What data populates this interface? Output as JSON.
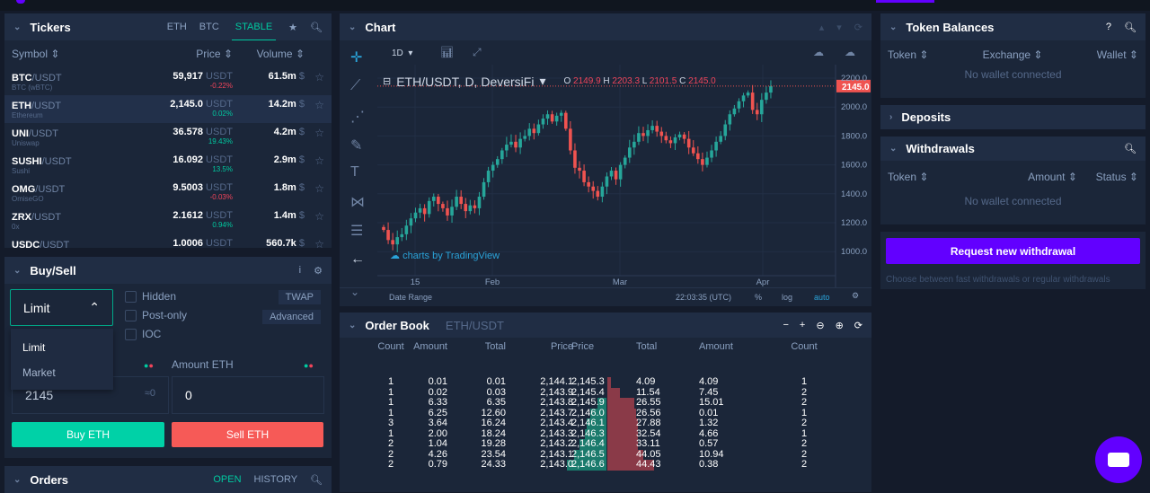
{
  "tickers": {
    "title": "Tickers",
    "tabs": [
      "ETH",
      "BTC",
      "STABLE"
    ],
    "active_tab": "STABLE",
    "cols": {
      "symbol": "Symbol ⇕",
      "price": "Price ⇕",
      "volume": "Volume ⇕"
    },
    "rows": [
      {
        "base": "BTC",
        "quote": "/USDT",
        "name": "BTC (wBTC)",
        "price": "59,917",
        "unit": "USDT",
        "change": "-0.22%",
        "dir": "down",
        "volume": "61.5m",
        "vu": "$"
      },
      {
        "base": "ETH",
        "quote": "/USDT",
        "name": "Ethereum",
        "price": "2,145.0",
        "unit": "USDT",
        "change": "0.02%",
        "dir": "up",
        "volume": "14.2m",
        "vu": "$"
      },
      {
        "base": "UNI",
        "quote": "/USDT",
        "name": "Uniswap",
        "price": "36.578",
        "unit": "USDT",
        "change": "19.43%",
        "dir": "up",
        "volume": "4.2m",
        "vu": "$"
      },
      {
        "base": "SUSHI",
        "quote": "/USDT",
        "name": "Sushi",
        "price": "16.092",
        "unit": "USDT",
        "change": "13.5%",
        "dir": "up",
        "volume": "2.9m",
        "vu": "$"
      },
      {
        "base": "OMG",
        "quote": "/USDT",
        "name": "OmiseGO",
        "price": "9.5003",
        "unit": "USDT",
        "change": "-0.03%",
        "dir": "down",
        "volume": "1.8m",
        "vu": "$"
      },
      {
        "base": "ZRX",
        "quote": "/USDT",
        "name": "0x",
        "price": "2.1612",
        "unit": "USDT",
        "change": "0.94%",
        "dir": "up",
        "volume": "1.4m",
        "vu": "$"
      },
      {
        "base": "USDC",
        "quote": "/USDT",
        "name": "",
        "price": "1.0006",
        "unit": "USDT",
        "change": "",
        "dir": "up",
        "volume": "560.7k",
        "vu": "$"
      }
    ]
  },
  "buysell": {
    "title": "Buy/Sell",
    "order_type": "Limit",
    "options": [
      "Limit",
      "Market"
    ],
    "checks": [
      "Hidden",
      "Post-only",
      "IOC"
    ],
    "twap": "TWAP",
    "advanced": "Advanced",
    "amount_label": "Amount ETH",
    "price_value": "2145",
    "price_hint": "≈0",
    "amount_value": "0",
    "buy": "Buy ETH",
    "sell": "Sell ETH"
  },
  "orders": {
    "title": "Orders",
    "tabs": [
      "OPEN",
      "HISTORY"
    ]
  },
  "chart": {
    "title": "Chart",
    "interval": "1D",
    "symbol": "ETH/USDT, D, DeversiFi",
    "ohlc": {
      "O": "2149.9",
      "H": "2203.3",
      "L": "2101.5",
      "C": "2145.0"
    },
    "last_price": "2145.0",
    "yticks": [
      "2200.0",
      "2000.0",
      "1800.0",
      "1600.0",
      "1400.0",
      "1200.0",
      "1000.0"
    ],
    "xticks": [
      "15",
      "Feb",
      "Mar",
      "Apr"
    ],
    "watermark": "charts by TradingView",
    "footer": {
      "range": "Date Range",
      "time": "22:03:35 (UTC)",
      "pct": "%",
      "log": "log",
      "auto": "auto"
    },
    "closes": [
      1150,
      1080,
      1050,
      1100,
      1120,
      1180,
      1230,
      1270,
      1300,
      1260,
      1350,
      1380,
      1330,
      1300,
      1250,
      1310,
      1380,
      1330,
      1280,
      1320,
      1300,
      1380,
      1480,
      1560,
      1600,
      1640,
      1700,
      1740,
      1760,
      1720,
      1780,
      1800,
      1850,
      1820,
      1880,
      1920,
      1950,
      1900,
      1940,
      1960,
      1850,
      1700,
      1580,
      1560,
      1480,
      1450,
      1420,
      1380,
      1450,
      1520,
      1560,
      1500,
      1600,
      1650,
      1720,
      1760,
      1820,
      1800,
      1840,
      1870,
      1830,
      1800,
      1770,
      1750,
      1790,
      1810,
      1780,
      1720,
      1680,
      1640,
      1600,
      1650,
      1700,
      1760,
      1800,
      1880,
      1950,
      1990,
      2040,
      2080,
      2100,
      1980,
      1950,
      2050,
      2100,
      2145
    ]
  },
  "orderbook": {
    "title": "Order Book",
    "pair": "ETH/USDT",
    "headers": [
      "Count",
      "Amount",
      "Total",
      "Price",
      "Price",
      "Total",
      "Amount",
      "Count"
    ],
    "rows": [
      [
        "1",
        "0.01",
        "0.01",
        "2,144.1",
        "2,145.3",
        "4.09",
        "4.09",
        "1"
      ],
      [
        "1",
        "0.02",
        "0.03",
        "2,143.9",
        "2,145.4",
        "11.54",
        "7.45",
        "2"
      ],
      [
        "1",
        "6.33",
        "6.35",
        "2,143.8",
        "2,145.9",
        "26.55",
        "15.01",
        "2"
      ],
      [
        "1",
        "6.25",
        "12.60",
        "2,143.7",
        "2,146.0",
        "26.56",
        "0.01",
        "1"
      ],
      [
        "3",
        "3.64",
        "16.24",
        "2,143.4",
        "2,146.1",
        "27.88",
        "1.32",
        "2"
      ],
      [
        "1",
        "2.00",
        "18.24",
        "2,143.3",
        "2,146.3",
        "32.54",
        "4.66",
        "1"
      ],
      [
        "2",
        "1.04",
        "19.28",
        "2,143.2",
        "2,146.4",
        "33.11",
        "0.57",
        "2"
      ],
      [
        "2",
        "4.26",
        "23.54",
        "2,143.1",
        "2,146.5",
        "44.05",
        "10.94",
        "2"
      ],
      [
        "2",
        "0.79",
        "24.33",
        "2,143.0",
        "2,146.6",
        "44.43",
        "0.38",
        "2"
      ]
    ]
  },
  "balances": {
    "title": "Token Balances",
    "cols": [
      "Token ⇕",
      "Exchange ⇕",
      "Wallet ⇕"
    ],
    "empty": "No wallet connected"
  },
  "deposits": {
    "title": "Deposits"
  },
  "withdrawals": {
    "title": "Withdrawals",
    "cols": [
      "Token ⇕",
      "Amount ⇕",
      "Status ⇕"
    ],
    "empty": "No wallet connected",
    "button": "Request new withdrawal",
    "hint": "Choose between fast withdrawals or regular withdrawals"
  },
  "colors": {
    "bg": "#141b2a",
    "panel": "#1b2639",
    "teal": "#00c9a0",
    "red": "#f0445a",
    "purple": "#6200ff"
  }
}
